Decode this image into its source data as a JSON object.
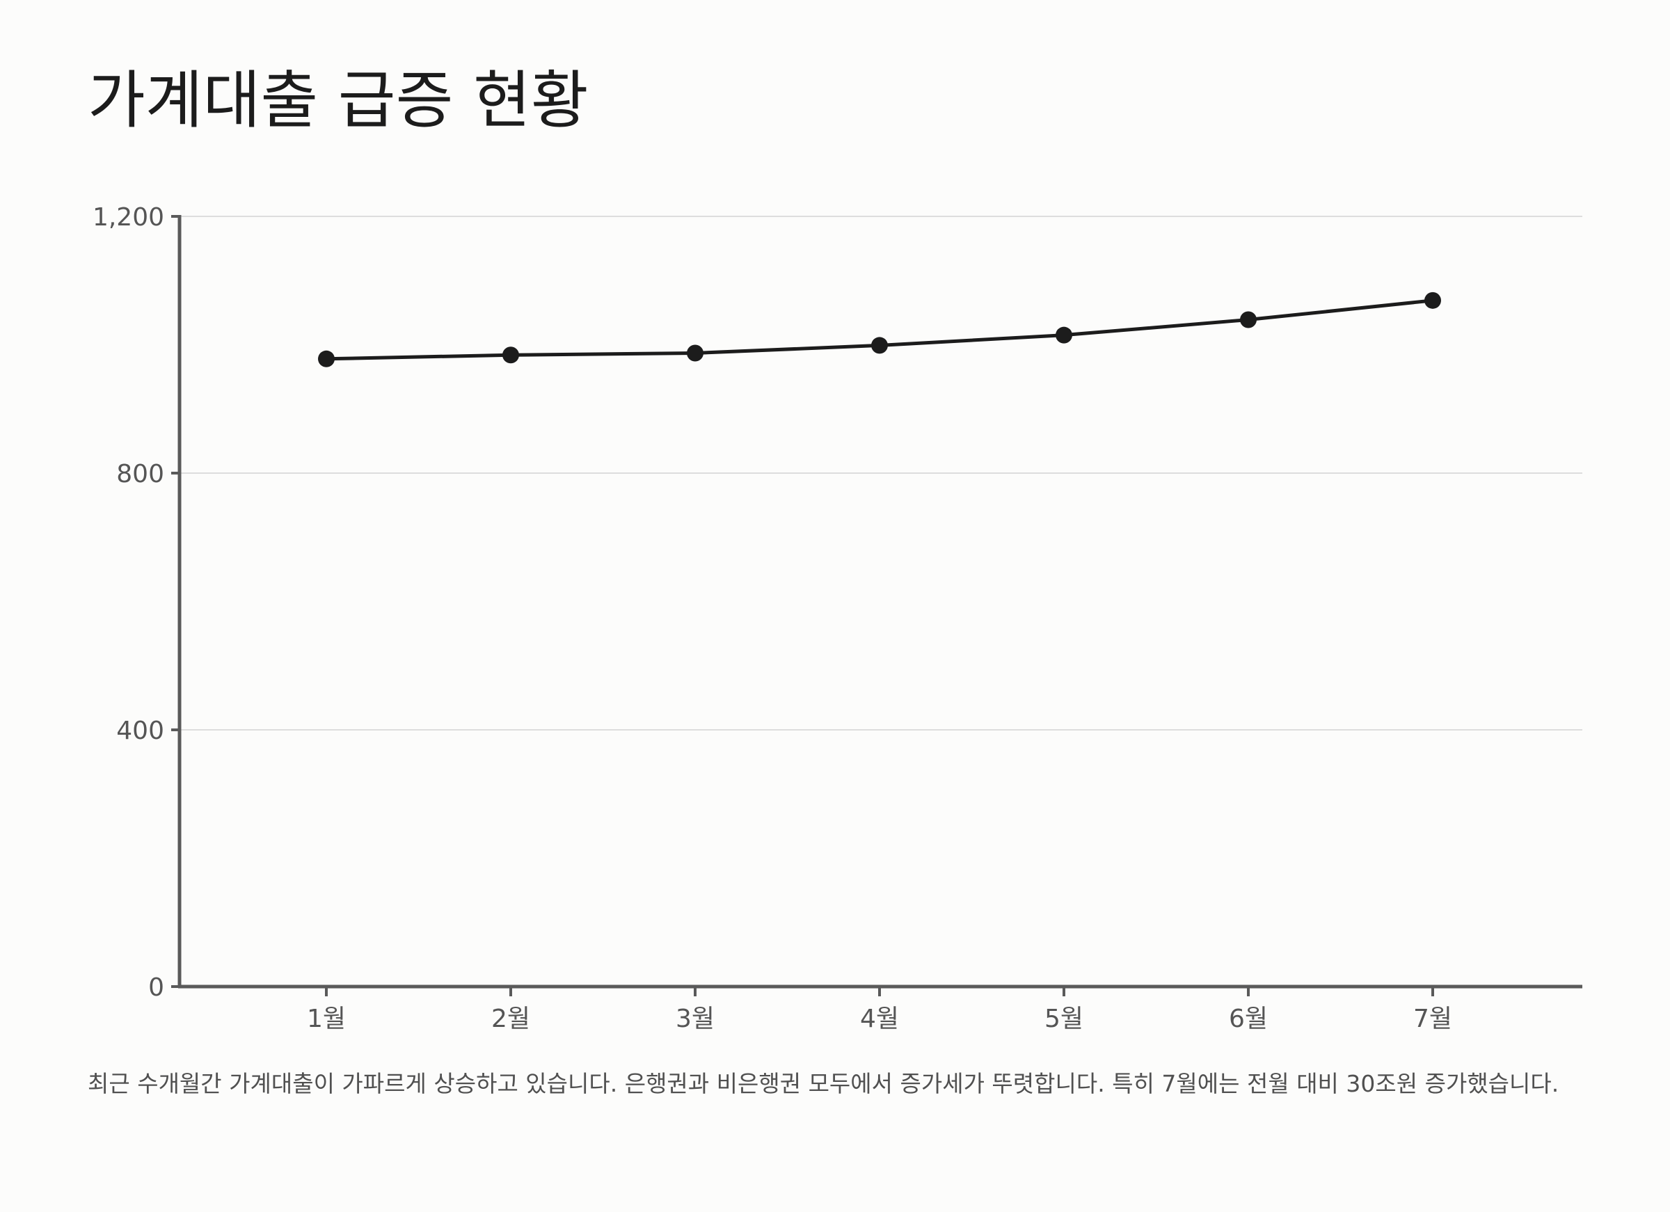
{
  "title": "가계대출 급증 현황",
  "caption": "최근 수개월간 가계대출이 가파르게 상승하고 있습니다. 은행권과 비은행권 모두에서 증가세가 뚜렷합니다. 특히 7월에는 전월 대비 30조원 증가했습니다.",
  "colors": {
    "line": "#1c1c1c",
    "axis": "#5a5a5a",
    "grid": "#dddddd",
    "tick_text": "#555555"
  },
  "chart_data": {
    "type": "line",
    "title": "가계대출 급증 현황",
    "xlabel": "",
    "ylabel": "",
    "categories": [
      "1월",
      "2월",
      "3월",
      "4월",
      "5월",
      "6월",
      "7월"
    ],
    "series": [
      {
        "values": [
          978,
          984,
          987,
          999,
          1015,
          1039,
          1069
        ]
      }
    ],
    "ylim": [
      0,
      1200
    ],
    "yticks": [
      0,
      400,
      800,
      1200
    ],
    "ytick_labels": [
      "0",
      "400",
      "800",
      "1,200"
    ],
    "grid": true,
    "markers": true,
    "legend": "none"
  }
}
